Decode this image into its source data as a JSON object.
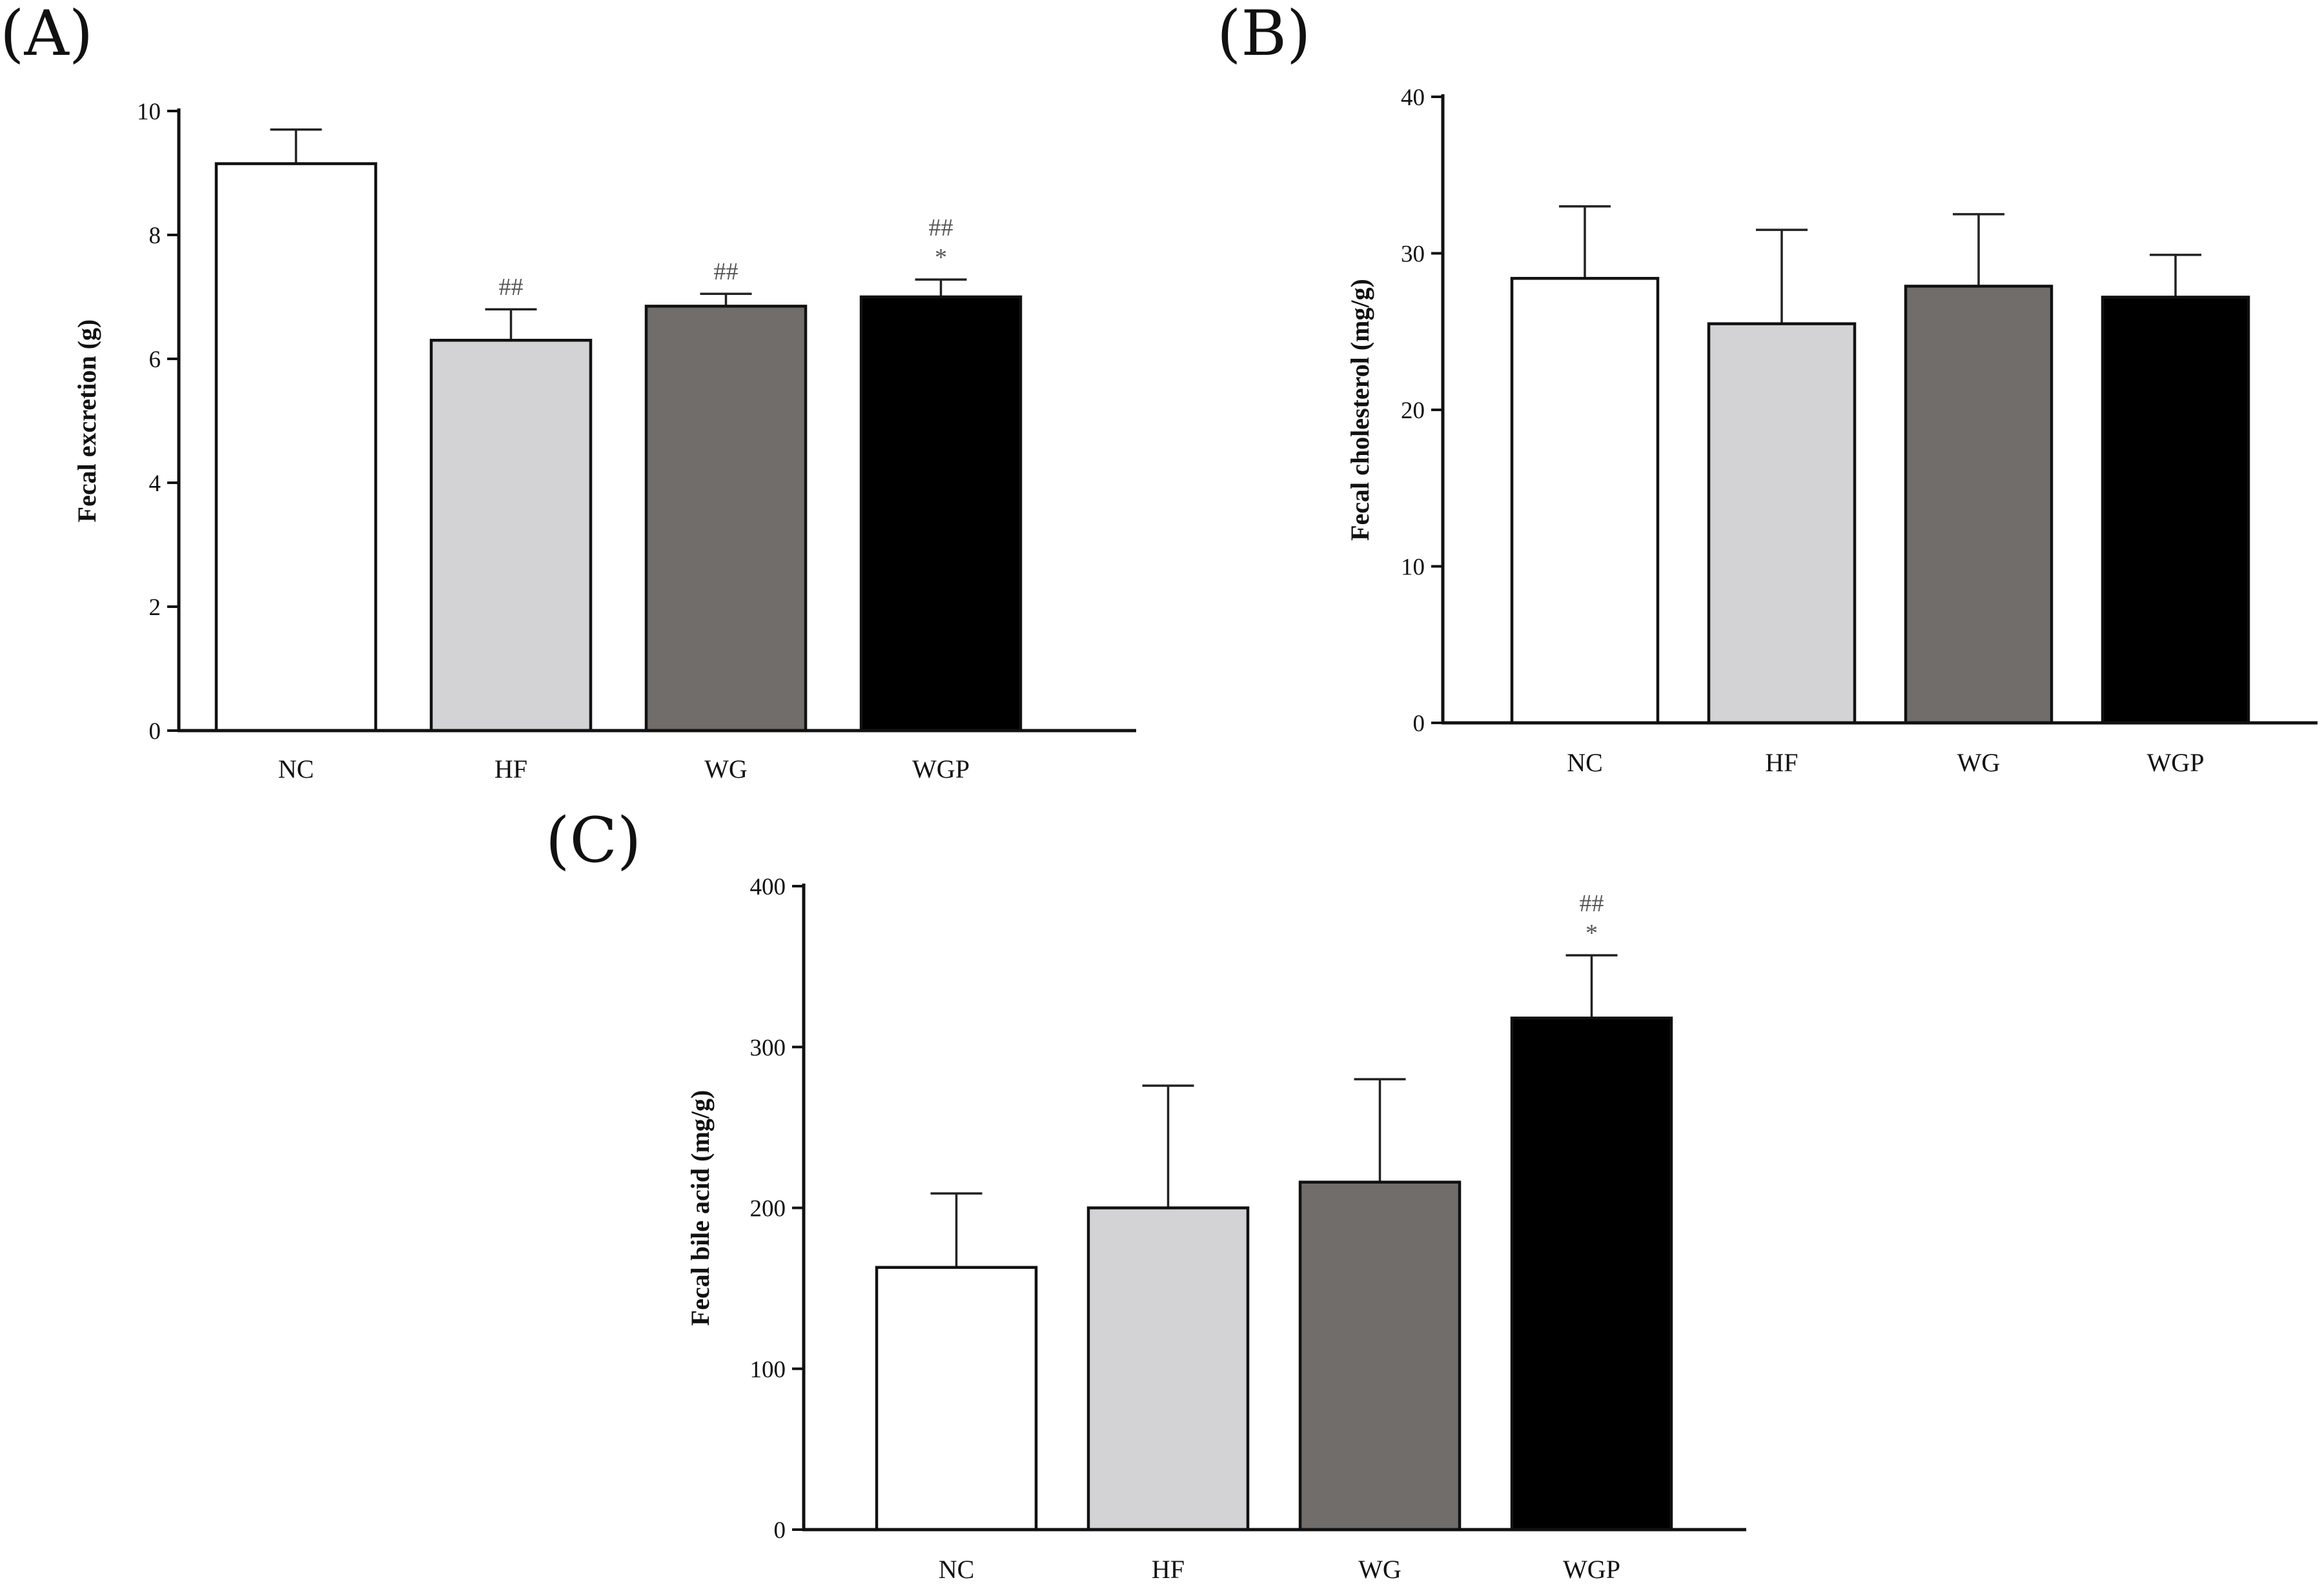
{
  "chart_data": [
    {
      "type": "bar",
      "panel": "(A)",
      "categories": [
        "NC",
        "HF",
        "WG",
        "WGP"
      ],
      "values": [
        9.15,
        6.3,
        6.85,
        7.0
      ],
      "errors": [
        0.55,
        0.5,
        0.2,
        0.28
      ],
      "colors": [
        "#ffffff",
        "#d3d2d4",
        "#716d6b",
        "#000000"
      ],
      "significance": [
        [],
        [
          "##"
        ],
        [
          "##"
        ],
        [
          "##",
          "*"
        ]
      ],
      "ylabel": "Fecal excretion (g)",
      "xlabel": "",
      "ylim": [
        0,
        10
      ],
      "yticks": [
        0,
        2,
        4,
        6,
        8,
        10
      ],
      "ytick_labels": [
        "0",
        "2",
        "4",
        "6",
        "8",
        "10"
      ],
      "grid": false,
      "legend": "none"
    },
    {
      "type": "bar",
      "panel": "(B)",
      "categories": [
        "NC",
        "HF",
        "WG",
        "WGP"
      ],
      "values": [
        28.4,
        25.5,
        27.9,
        27.2
      ],
      "errors": [
        4.6,
        6.0,
        4.6,
        2.7
      ],
      "colors": [
        "#ffffff",
        "#d3d2d4",
        "#716d6b",
        "#000000"
      ],
      "significance": [
        [],
        [],
        [],
        []
      ],
      "ylabel": "Fecal cholesterol (mg/g)",
      "xlabel": "",
      "ylim": [
        0,
        40
      ],
      "yticks": [
        0,
        10,
        20,
        30,
        40
      ],
      "ytick_labels": [
        "0",
        "10",
        "20",
        "30",
        "40"
      ],
      "grid": false,
      "legend": "none"
    },
    {
      "type": "bar",
      "panel": "(C)",
      "categories": [
        "NC",
        "HF",
        "WG",
        "WGP"
      ],
      "values": [
        163,
        200,
        216,
        318
      ],
      "errors": [
        46,
        76,
        64,
        39
      ],
      "colors": [
        "#ffffff",
        "#d3d2d4",
        "#716d6b",
        "#000000"
      ],
      "significance": [
        [],
        [],
        [],
        [
          "##",
          "*"
        ]
      ],
      "ylabel": "Fecal bile acid (mg/g)",
      "xlabel": "",
      "ylim": [
        0,
        400
      ],
      "yticks": [
        0,
        100,
        200,
        300,
        400
      ],
      "ytick_labels": [
        "0",
        "100",
        "200",
        "300",
        "400"
      ],
      "grid": false,
      "legend": "none"
    }
  ]
}
